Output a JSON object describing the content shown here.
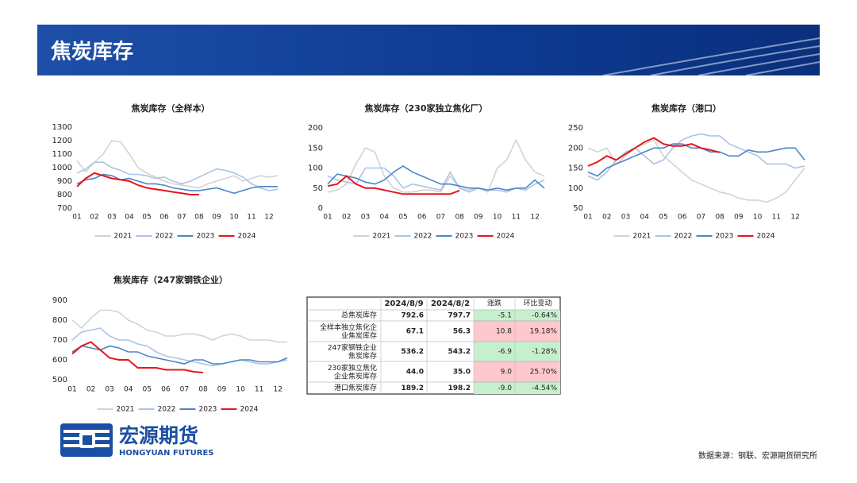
{
  "header": {
    "title": "焦炭库存"
  },
  "chart_data": [
    {
      "type": "line",
      "title": "焦炭库存（全样本）",
      "categories": [
        "01",
        null,
        "02",
        null,
        "03",
        null,
        "04",
        null,
        "05",
        null,
        "06",
        null,
        "07",
        null,
        "08",
        null,
        "09",
        null,
        "10",
        null,
        "11",
        null,
        "12",
        null
      ],
      "ylim": [
        700,
        1300
      ],
      "yticks": [
        700,
        800,
        900,
        1000,
        1100,
        1200,
        1300
      ],
      "grid": false,
      "series": [
        {
          "name": "2021",
          "color": "#d3d3d3",
          "values": [
            1050,
            970,
            1040,
            1100,
            1200,
            1190,
            1100,
            1000,
            960,
            930,
            900,
            880,
            870,
            860,
            850,
            880,
            900,
            920,
            940,
            900,
            920,
            940,
            930,
            940
          ]
        },
        {
          "name": "2022",
          "color": "#aac4e6",
          "values": [
            960,
            990,
            1040,
            1040,
            1000,
            980,
            950,
            950,
            940,
            920,
            930,
            900,
            880,
            900,
            930,
            960,
            990,
            980,
            960,
            930,
            880,
            850,
            830,
            840
          ]
        },
        {
          "name": "2023",
          "color": "#4a86c8",
          "values": [
            880,
            910,
            920,
            950,
            940,
            910,
            920,
            900,
            880,
            880,
            870,
            850,
            840,
            830,
            830,
            840,
            850,
            830,
            810,
            830,
            850,
            860,
            860,
            860
          ]
        },
        {
          "name": "2024",
          "color": "#e8141b",
          "values": [
            860,
            920,
            960,
            940,
            920,
            910,
            900,
            870,
            850,
            840,
            830,
            820,
            810,
            800,
            800,
            null,
            null,
            null,
            null,
            null,
            null,
            null,
            null,
            null
          ]
        }
      ]
    },
    {
      "type": "line",
      "title": "焦炭库存（230家独立焦化厂）",
      "categories": [
        "01",
        null,
        "02",
        null,
        "03",
        null,
        "04",
        null,
        "05",
        null,
        "06",
        null,
        "07",
        null,
        "08",
        null,
        "09",
        null,
        "10",
        null,
        "11",
        null,
        "12",
        null
      ],
      "ylim": [
        0,
        200
      ],
      "yticks": [
        0,
        50,
        100,
        150,
        200
      ],
      "grid": false,
      "series": [
        {
          "name": "2021",
          "color": "#d3d3d3",
          "values": [
            40,
            45,
            60,
            110,
            150,
            140,
            80,
            50,
            40,
            40,
            45,
            45,
            40,
            80,
            50,
            45,
            50,
            40,
            100,
            120,
            170,
            120,
            90,
            80
          ]
        },
        {
          "name": "2022",
          "color": "#aac4e6",
          "values": [
            80,
            70,
            65,
            60,
            100,
            100,
            100,
            80,
            50,
            60,
            55,
            50,
            45,
            90,
            50,
            40,
            50,
            45,
            45,
            40,
            50,
            45,
            60,
            70
          ]
        },
        {
          "name": "2023",
          "color": "#4a86c8",
          "values": [
            60,
            85,
            80,
            75,
            65,
            60,
            70,
            90,
            105,
            90,
            80,
            70,
            60,
            60,
            55,
            50,
            50,
            45,
            50,
            45,
            50,
            50,
            70,
            50
          ]
        },
        {
          "name": "2024",
          "color": "#e8141b",
          "values": [
            55,
            60,
            80,
            60,
            50,
            50,
            45,
            40,
            35,
            35,
            35,
            35,
            35,
            35,
            44,
            null,
            null,
            null,
            null,
            null,
            null,
            null,
            null,
            null
          ]
        }
      ]
    },
    {
      "type": "line",
      "title": "焦炭库存（港口）",
      "categories": [
        "01",
        null,
        "02",
        null,
        "03",
        null,
        "04",
        null,
        "05",
        null,
        "06",
        null,
        "07",
        null,
        "08",
        null,
        "09",
        null,
        "10",
        null,
        "11",
        null,
        "12",
        null
      ],
      "ylim": [
        50,
        250
      ],
      "yticks": [
        50,
        100,
        150,
        200,
        250
      ],
      "grid": false,
      "series": [
        {
          "name": "2021",
          "color": "#d3d3d3",
          "values": [
            200,
            190,
            200,
            160,
            180,
            200,
            210,
            220,
            180,
            160,
            140,
            120,
            110,
            100,
            90,
            85,
            75,
            70,
            70,
            65,
            75,
            90,
            120,
            150
          ]
        },
        {
          "name": "2022",
          "color": "#aac4e6",
          "values": [
            130,
            120,
            140,
            170,
            190,
            200,
            180,
            160,
            170,
            200,
            220,
            230,
            235,
            230,
            230,
            210,
            200,
            190,
            180,
            160,
            160,
            160,
            150,
            155
          ]
        },
        {
          "name": "2023",
          "color": "#4a86c8",
          "values": [
            140,
            130,
            150,
            160,
            170,
            180,
            190,
            200,
            200,
            210,
            210,
            200,
            200,
            190,
            190,
            180,
            180,
            195,
            190,
            190,
            195,
            200,
            200,
            170
          ]
        },
        {
          "name": "2024",
          "color": "#e8141b",
          "values": [
            155,
            165,
            180,
            170,
            185,
            200,
            215,
            225,
            210,
            205,
            205,
            210,
            200,
            195,
            189,
            null,
            null,
            null,
            null,
            null,
            null,
            null,
            null,
            null
          ]
        }
      ]
    },
    {
      "type": "line",
      "title": "焦炭库存（247家钢铁企业）",
      "categories": [
        "01",
        null,
        "02",
        null,
        "03",
        null,
        "04",
        null,
        "05",
        null,
        "06",
        null,
        "07",
        null,
        "08",
        null,
        "09",
        null,
        "10",
        null,
        "11",
        null,
        "12",
        null
      ],
      "ylim": [
        500,
        900
      ],
      "yticks": [
        500,
        600,
        700,
        800,
        900
      ],
      "grid": false,
      "series": [
        {
          "name": "2021",
          "color": "#d3d3d3",
          "values": [
            800,
            760,
            810,
            850,
            850,
            840,
            800,
            780,
            750,
            740,
            720,
            720,
            730,
            730,
            720,
            700,
            720,
            730,
            720,
            700,
            700,
            700,
            690,
            690
          ]
        },
        {
          "name": "2022",
          "color": "#aac4e6",
          "values": [
            700,
            740,
            750,
            760,
            720,
            700,
            700,
            680,
            670,
            640,
            620,
            610,
            600,
            590,
            580,
            570,
            580,
            590,
            600,
            590,
            580,
            580,
            590,
            600
          ]
        },
        {
          "name": "2023",
          "color": "#4a86c8",
          "values": [
            640,
            670,
            660,
            650,
            670,
            660,
            640,
            640,
            620,
            610,
            600,
            590,
            580,
            600,
            600,
            580,
            580,
            590,
            600,
            600,
            590,
            590,
            590,
            610
          ]
        },
        {
          "name": "2024",
          "color": "#e8141b",
          "values": [
            630,
            670,
            690,
            650,
            610,
            600,
            600,
            560,
            560,
            560,
            550,
            550,
            550,
            540,
            536,
            null,
            null,
            null,
            null,
            null,
            null,
            null,
            null,
            null
          ]
        }
      ]
    }
  ],
  "table": {
    "columns": [
      "2024/8/9",
      "2024/8/2",
      "涨跌",
      "环比变动"
    ],
    "rows": [
      [
        "总焦炭库存",
        "792.6",
        "797.7",
        "-5.1",
        "-0.64%"
      ],
      [
        "全样本独立焦化企业焦炭库存",
        "67.1",
        "56.3",
        "10.8",
        "19.18%"
      ],
      [
        "247家钢铁企业焦炭库存",
        "536.2",
        "543.2",
        "-6.9",
        "-1.28%"
      ],
      [
        "230家独立焦化企业焦炭库存",
        "44.0",
        "35.0",
        "9.0",
        "25.70%"
      ],
      [
        "港口焦炭库存",
        "189.2",
        "198.2",
        "-9.0",
        "-4.54%"
      ]
    ]
  },
  "logo": {
    "name": "宏源期货",
    "en": "HONGYUAN FUTURES"
  },
  "footer": {
    "source": "数据来源：钢联、宏源期货研究所"
  }
}
